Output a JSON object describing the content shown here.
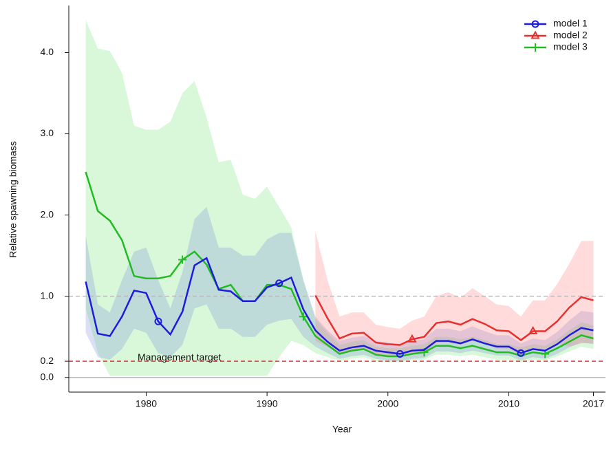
{
  "chart_data": {
    "type": "line",
    "xlabel": "Year",
    "ylabel": "Relative spawning biomass",
    "x": [
      1975,
      1976,
      1977,
      1978,
      1979,
      1980,
      1981,
      1982,
      1983,
      1984,
      1985,
      1986,
      1987,
      1988,
      1989,
      1990,
      1991,
      1992,
      1993,
      1994,
      1995,
      1996,
      1997,
      1998,
      1999,
      2000,
      2001,
      2002,
      2003,
      2004,
      2005,
      2006,
      2007,
      2008,
      2009,
      2010,
      2011,
      2012,
      2013,
      2014,
      2015,
      2016,
      2017
    ],
    "xlim": [
      1973.6,
      2018
    ],
    "xticks": [
      1980,
      1990,
      2000,
      2010,
      2017
    ],
    "ylim": [
      -0.18,
      4.58
    ],
    "yticks": [
      {
        "value": 0,
        "label": "0.0"
      },
      0.2,
      {
        "value": 1,
        "label": "1.0"
      },
      {
        "value": 2,
        "label": "2.0"
      },
      {
        "value": 3,
        "label": "3.0"
      },
      {
        "value": 4,
        "label": "4.0"
      }
    ],
    "legend": "upper right",
    "reference_lines": [
      {
        "value": 1,
        "color": "#bbbbbb",
        "style": "dashed"
      },
      {
        "value": 0.2,
        "color": "#e8302f",
        "style": "dashed",
        "label": "Management target"
      },
      {
        "value": 0,
        "color": "#bbbbbb",
        "style": "solid"
      }
    ],
    "series": [
      {
        "name": "model 3",
        "color": "#22bb22",
        "band_color": "rgba(120,230,120,0.28)",
        "marker": "plus",
        "markevery": [
          8,
          10
        ],
        "values": [
          2.53,
          2.05,
          1.93,
          1.69,
          1.25,
          1.22,
          1.22,
          1.25,
          1.45,
          1.55,
          1.39,
          1.09,
          1.14,
          0.94,
          0.94,
          1.14,
          1.14,
          1.09,
          0.75,
          0.51,
          0.4,
          0.29,
          0.33,
          0.35,
          0.28,
          0.26,
          0.26,
          0.29,
          0.31,
          0.39,
          0.39,
          0.36,
          0.39,
          0.35,
          0.31,
          0.31,
          0.27,
          0.31,
          0.29,
          0.36,
          0.44,
          0.52,
          0.48
        ],
        "upper": [
          4.4,
          4.05,
          4.02,
          3.75,
          3.1,
          3.05,
          3.05,
          3.15,
          3.5,
          3.65,
          3.2,
          2.65,
          2.68,
          2.25,
          2.2,
          2.35,
          2.1,
          1.85,
          1.2,
          0.72,
          0.55,
          0.4,
          0.44,
          0.46,
          0.38,
          0.36,
          0.36,
          0.39,
          0.41,
          0.5,
          0.5,
          0.47,
          0.5,
          0.46,
          0.41,
          0.41,
          0.37,
          0.41,
          0.39,
          0.47,
          0.58,
          0.68,
          0.64
        ],
        "lower": [
          0.85,
          0.3,
          0.02,
          0.02,
          0.02,
          0.02,
          0.02,
          0.02,
          0.02,
          0.02,
          0.02,
          0.02,
          0.02,
          0.02,
          0.02,
          0.02,
          0.25,
          0.45,
          0.4,
          0.3,
          0.25,
          0.2,
          0.23,
          0.25,
          0.2,
          0.19,
          0.19,
          0.21,
          0.22,
          0.28,
          0.28,
          0.26,
          0.28,
          0.25,
          0.22,
          0.22,
          0.19,
          0.22,
          0.21,
          0.26,
          0.32,
          0.38,
          0.35
        ]
      },
      {
        "name": "model 1",
        "color": "#1c1cdc",
        "band_color": "rgba(110,130,220,0.25)",
        "marker": "circle",
        "markevery": [
          6,
          10
        ],
        "values": [
          1.18,
          0.54,
          0.51,
          0.75,
          1.07,
          1.04,
          0.69,
          0.53,
          0.81,
          1.38,
          1.47,
          1.08,
          1.06,
          0.94,
          0.94,
          1.11,
          1.16,
          1.23,
          0.84,
          0.58,
          0.44,
          0.33,
          0.37,
          0.39,
          0.33,
          0.31,
          0.29,
          0.33,
          0.34,
          0.45,
          0.45,
          0.42,
          0.47,
          0.42,
          0.38,
          0.38,
          0.3,
          0.35,
          0.33,
          0.41,
          0.52,
          0.61,
          0.58
        ],
        "upper": [
          1.75,
          0.9,
          0.8,
          1.2,
          1.55,
          1.6,
          1.2,
          0.85,
          1.3,
          1.95,
          2.1,
          1.6,
          1.6,
          1.5,
          1.5,
          1.7,
          1.78,
          1.78,
          1.2,
          0.75,
          0.58,
          0.45,
          0.49,
          0.51,
          0.45,
          0.43,
          0.41,
          0.45,
          0.47,
          0.6,
          0.6,
          0.57,
          0.63,
          0.57,
          0.52,
          0.52,
          0.42,
          0.48,
          0.46,
          0.56,
          0.7,
          0.82,
          0.8
        ],
        "lower": [
          0.55,
          0.25,
          0.22,
          0.35,
          0.6,
          0.55,
          0.3,
          0.25,
          0.4,
          0.85,
          0.9,
          0.6,
          0.6,
          0.5,
          0.5,
          0.65,
          0.7,
          0.72,
          0.5,
          0.38,
          0.3,
          0.23,
          0.26,
          0.28,
          0.23,
          0.21,
          0.2,
          0.23,
          0.24,
          0.32,
          0.32,
          0.3,
          0.33,
          0.3,
          0.27,
          0.27,
          0.21,
          0.25,
          0.23,
          0.29,
          0.37,
          0.43,
          0.41
        ]
      },
      {
        "name": "model 2",
        "color": "#e8302f",
        "band_color": "rgba(255,110,110,0.25)",
        "marker": "triangle",
        "markevery": [
          27,
          10
        ],
        "values": [
          null,
          null,
          null,
          null,
          null,
          null,
          null,
          null,
          null,
          null,
          null,
          null,
          null,
          null,
          null,
          null,
          null,
          null,
          null,
          1.01,
          0.73,
          0.48,
          0.54,
          0.55,
          0.43,
          0.41,
          0.4,
          0.47,
          0.5,
          0.67,
          0.69,
          0.65,
          0.72,
          0.66,
          0.58,
          0.57,
          0.46,
          0.57,
          0.57,
          0.69,
          0.86,
          0.99,
          0.95
        ],
        "upper": [
          null,
          null,
          null,
          null,
          null,
          null,
          null,
          null,
          null,
          null,
          null,
          null,
          null,
          null,
          null,
          null,
          null,
          null,
          null,
          1.8,
          1.2,
          0.75,
          0.8,
          0.8,
          0.65,
          0.62,
          0.6,
          0.7,
          0.75,
          1.0,
          1.05,
          0.98,
          1.1,
          1.0,
          0.9,
          0.88,
          0.75,
          0.95,
          0.95,
          1.15,
          1.4,
          1.68,
          1.68
        ],
        "lower": [
          null,
          null,
          null,
          null,
          null,
          null,
          null,
          null,
          null,
          null,
          null,
          null,
          null,
          null,
          null,
          null,
          null,
          null,
          null,
          0.45,
          0.38,
          0.3,
          0.33,
          0.34,
          0.27,
          0.26,
          0.25,
          0.29,
          0.31,
          0.42,
          0.43,
          0.4,
          0.45,
          0.41,
          0.36,
          0.35,
          0.28,
          0.35,
          0.35,
          0.42,
          0.38,
          0.42,
          0.42
        ]
      }
    ]
  }
}
